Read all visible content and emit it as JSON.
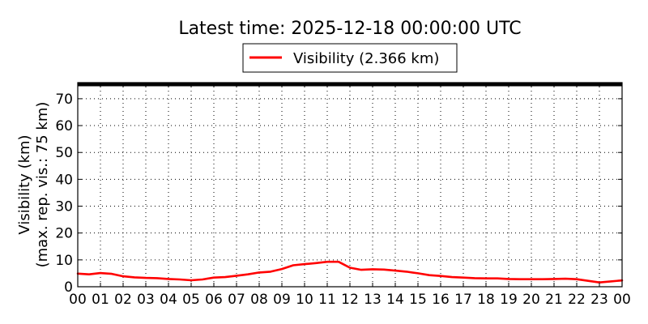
{
  "chart_data": {
    "type": "line",
    "title": "Latest time: 2025-12-18 00:00:00 UTC",
    "ylabel_lines": [
      "Visibility (km)",
      "(max. rep. vis.: 75 km)"
    ],
    "xlabel": "",
    "x_tick_labels": [
      "00",
      "01",
      "02",
      "03",
      "04",
      "05",
      "06",
      "07",
      "08",
      "09",
      "10",
      "11",
      "12",
      "13",
      "14",
      "15",
      "16",
      "17",
      "18",
      "19",
      "20",
      "21",
      "22",
      "23",
      "00"
    ],
    "y_ticks": [
      0,
      10,
      20,
      30,
      40,
      50,
      60,
      70
    ],
    "xlim": [
      0,
      24
    ],
    "ylim": [
      0,
      76
    ],
    "x_unit": "hours UTC",
    "grid": true,
    "legend_position": "top-center, above plot",
    "series": [
      {
        "name": "Visibility (2.366 km)",
        "color": "#ff0000",
        "x": [
          0,
          0.5,
          1,
          1.5,
          2,
          2.5,
          3,
          3.5,
          4,
          4.5,
          5,
          5.5,
          6,
          6.5,
          7,
          7.5,
          8,
          8.5,
          9,
          9.5,
          10,
          10.5,
          11,
          11.5,
          12,
          12.5,
          13,
          13.5,
          14,
          14.5,
          15,
          15.5,
          16,
          16.5,
          17,
          17.5,
          18,
          18.5,
          19,
          19.5,
          20,
          20.5,
          21,
          21.5,
          22,
          22.5,
          23,
          23.5,
          24
        ],
        "y": [
          4.9,
          4.6,
          5.1,
          4.8,
          3.9,
          3.5,
          3.3,
          3.2,
          2.9,
          2.7,
          2.4,
          2.7,
          3.4,
          3.6,
          4.1,
          4.6,
          5.3,
          5.6,
          6.6,
          8.0,
          8.4,
          8.8,
          9.3,
          9.3,
          7.1,
          6.3,
          6.5,
          6.4,
          6.0,
          5.6,
          5.0,
          4.3,
          4.0,
          3.6,
          3.4,
          3.2,
          3.1,
          3.1,
          2.9,
          2.8,
          2.8,
          2.8,
          2.9,
          3.0,
          2.8,
          2.2,
          1.6,
          2.0,
          2.366
        ]
      }
    ]
  }
}
